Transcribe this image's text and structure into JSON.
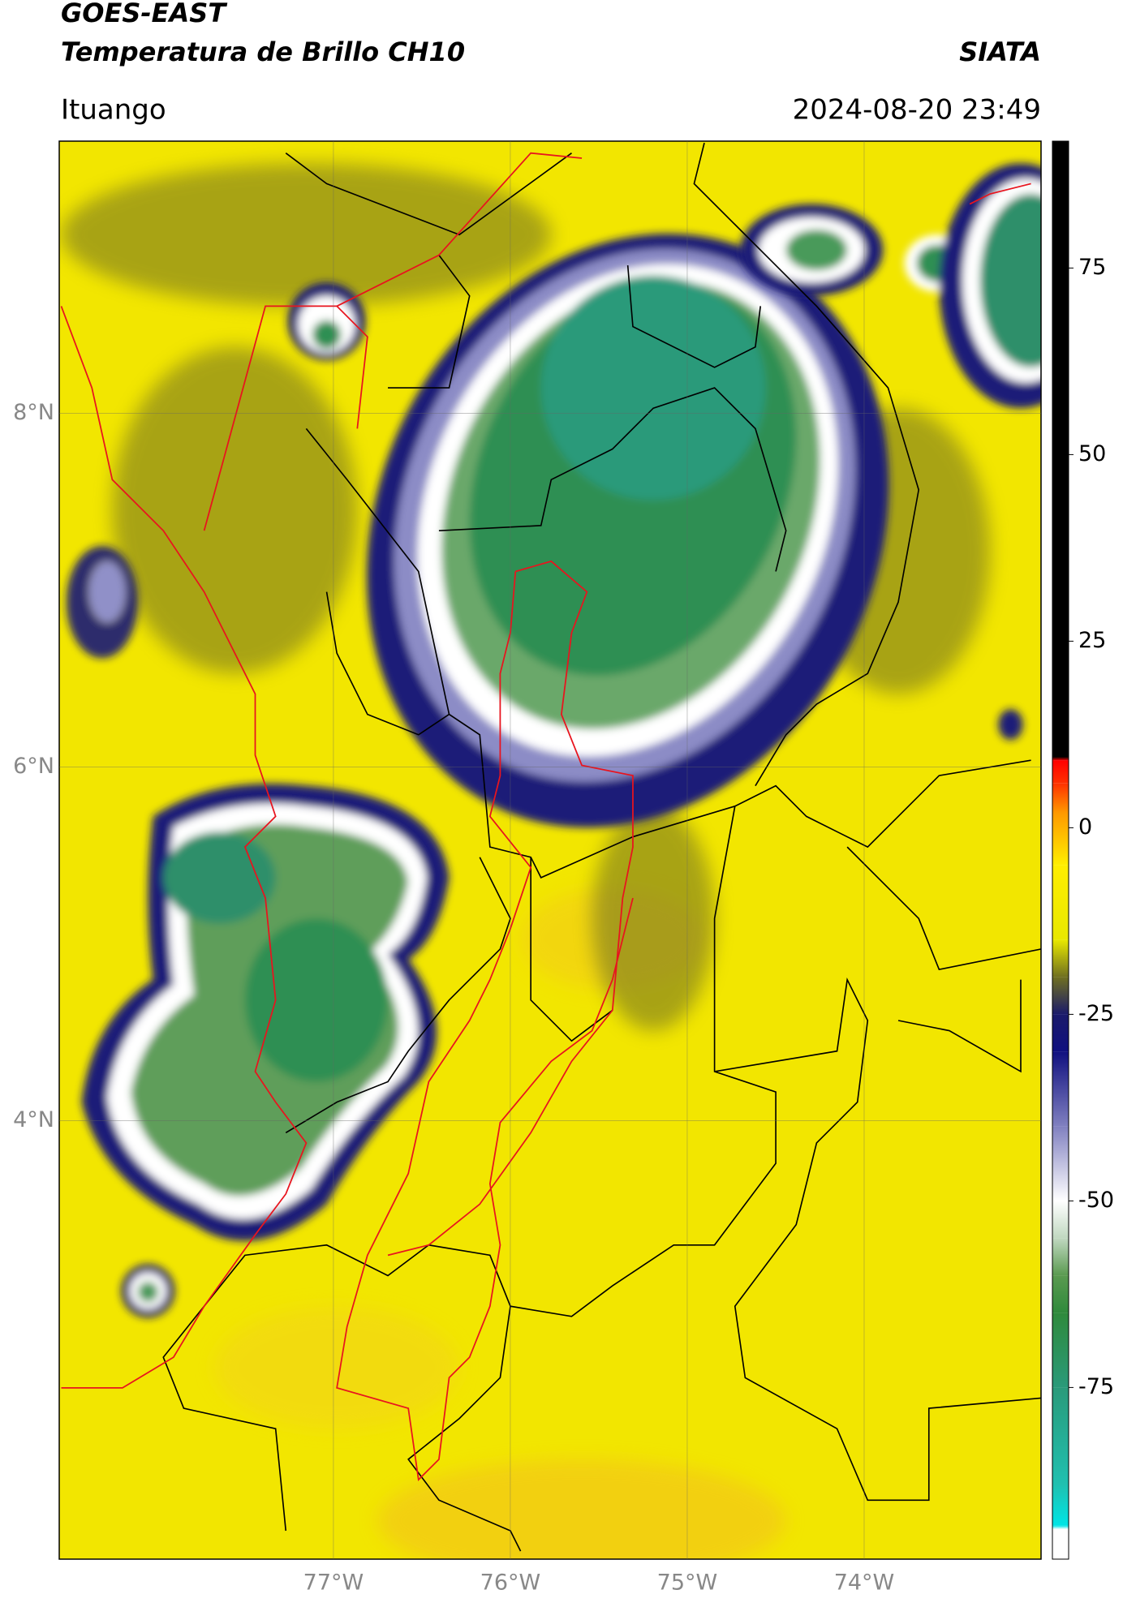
{
  "header": {
    "title": "GOES-EAST",
    "subtitle": "Temperatura de Brillo CH10",
    "source": "SIATA",
    "location": "Ituango",
    "datetime": "2024-08-20 23:49"
  },
  "map": {
    "xlim": [
      -78.55,
      -73.0
    ],
    "ylim": [
      1.52,
      9.54
    ],
    "xticks": [
      {
        "value": -77,
        "label": "77°W"
      },
      {
        "value": -76,
        "label": "76°W"
      },
      {
        "value": -75,
        "label": "75°W"
      },
      {
        "value": -74,
        "label": "74°W"
      }
    ],
    "yticks": [
      {
        "value": 4,
        "label": "4°N"
      },
      {
        "value": 6,
        "label": "6°N"
      },
      {
        "value": 8,
        "label": "8°N"
      }
    ],
    "grid": true
  },
  "colorbar": {
    "lim": [
      -98,
      92
    ],
    "ticks": [
      -75,
      -50,
      -25,
      0,
      25,
      50,
      75
    ],
    "stops": [
      {
        "value": -98,
        "color": "#ffffff"
      },
      {
        "value": -94,
        "color": "#ffffff"
      },
      {
        "value": -93.5,
        "color": "#00e5e5"
      },
      {
        "value": -88,
        "color": "#20c0b0"
      },
      {
        "value": -75,
        "color": "#2a9a7a"
      },
      {
        "value": -65,
        "color": "#2f8a3c"
      },
      {
        "value": -60,
        "color": "#5a9a50"
      },
      {
        "value": -55,
        "color": "#c0d8c0"
      },
      {
        "value": -50,
        "color": "#ffffff"
      },
      {
        "value": -40,
        "color": "#8080c0"
      },
      {
        "value": -30,
        "color": "#101080"
      },
      {
        "value": -25,
        "color": "#1a1a6a"
      },
      {
        "value": -20,
        "color": "#707020"
      },
      {
        "value": -15,
        "color": "#e8e800"
      },
      {
        "value": -5,
        "color": "#ffee00"
      },
      {
        "value": 2,
        "color": "#ff9900"
      },
      {
        "value": 6,
        "color": "#ff3000"
      },
      {
        "value": 9,
        "color": "#ff0000"
      },
      {
        "value": 9.5,
        "color": "#000000"
      },
      {
        "value": 92,
        "color": "#000000"
      }
    ]
  }
}
